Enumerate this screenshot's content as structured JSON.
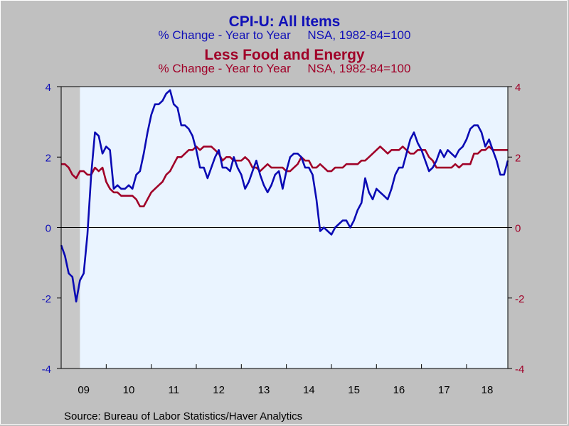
{
  "chart_data": {
    "type": "line",
    "title": "CPI-U: All Items",
    "subtitle": "% Change - Year to Year     NSA, 1982-84=100",
    "title2": "Less Food and Energy",
    "subtitle2": "% Change - Year to Year     NSA, 1982-84=100",
    "source": "Source:  Bureau of Labor Statistics/Haver Analytics",
    "ylim": [
      -4,
      4
    ],
    "yticks": [
      "4",
      "2",
      "0",
      "-2",
      "-4"
    ],
    "yticks_right": [
      "4",
      "2",
      "0",
      "-2",
      "-4"
    ],
    "xticks": [
      "09",
      "10",
      "11",
      "12",
      "13",
      "14",
      "15",
      "16",
      "17",
      "18"
    ],
    "x_range": [
      2009.0,
      2018.917
    ],
    "recession_shade": [
      2009.0,
      2009.417
    ],
    "zero_line": true,
    "grid": false,
    "legend": "none",
    "series": [
      {
        "axis": "left",
        "color": "#0a0ab4",
        "x": [
          2009.0,
          2009.083,
          2009.167,
          2009.25,
          2009.333,
          2009.417,
          2009.5,
          2009.583,
          2009.667,
          2009.75,
          2009.833,
          2009.917,
          2010.0,
          2010.083,
          2010.167,
          2010.25,
          2010.333,
          2010.417,
          2010.5,
          2010.583,
          2010.667,
          2010.75,
          2010.833,
          2010.917,
          2011.0,
          2011.083,
          2011.167,
          2011.25,
          2011.333,
          2011.417,
          2011.5,
          2011.583,
          2011.667,
          2011.75,
          2011.833,
          2011.917,
          2012.0,
          2012.083,
          2012.167,
          2012.25,
          2012.333,
          2012.417,
          2012.5,
          2012.583,
          2012.667,
          2012.75,
          2012.833,
          2012.917,
          2013.0,
          2013.083,
          2013.167,
          2013.25,
          2013.333,
          2013.417,
          2013.5,
          2013.583,
          2013.667,
          2013.75,
          2013.833,
          2013.917,
          2014.0,
          2014.083,
          2014.167,
          2014.25,
          2014.333,
          2014.417,
          2014.5,
          2014.583,
          2014.667,
          2014.75,
          2014.833,
          2014.917,
          2015.0,
          2015.083,
          2015.167,
          2015.25,
          2015.333,
          2015.417,
          2015.5,
          2015.583,
          2015.667,
          2015.75,
          2015.833,
          2015.917,
          2016.0,
          2016.083,
          2016.167,
          2016.25,
          2016.333,
          2016.417,
          2016.5,
          2016.583,
          2016.667,
          2016.75,
          2016.833,
          2016.917,
          2017.0,
          2017.083,
          2017.167,
          2017.25,
          2017.333,
          2017.417,
          2017.5,
          2017.583,
          2017.667,
          2017.75,
          2017.833,
          2017.917,
          2018.0,
          2018.083,
          2018.167,
          2018.25,
          2018.333,
          2018.417,
          2018.5,
          2018.583,
          2018.667,
          2018.75,
          2018.833,
          2018.917
        ],
        "y": [
          -0.5,
          -0.8,
          -1.3,
          -1.4,
          -2.1,
          -1.5,
          -1.3,
          -0.2,
          1.5,
          2.7,
          2.6,
          2.1,
          2.3,
          2.2,
          1.1,
          1.2,
          1.1,
          1.1,
          1.2,
          1.1,
          1.5,
          1.6,
          2.1,
          2.7,
          3.2,
          3.5,
          3.5,
          3.6,
          3.8,
          3.9,
          3.5,
          3.4,
          2.9,
          2.9,
          2.8,
          2.6,
          2.2,
          1.7,
          1.7,
          1.4,
          1.7,
          2.0,
          2.2,
          1.7,
          1.7,
          1.6,
          2.0,
          1.7,
          1.5,
          1.1,
          1.3,
          1.6,
          1.9,
          1.5,
          1.2,
          1.0,
          1.2,
          1.5,
          1.6,
          1.1,
          1.6,
          2.0,
          2.1,
          2.1,
          2.0,
          1.7,
          1.7,
          1.5,
          0.8,
          -0.1,
          0.0,
          -0.1,
          -0.2,
          0.0,
          0.1,
          0.2,
          0.2,
          0.0,
          0.2,
          0.5,
          0.7,
          1.4,
          1.0,
          0.8,
          1.1,
          1.0,
          0.9,
          0.8,
          1.1,
          1.5,
          1.7,
          1.7,
          2.1,
          2.5,
          2.7,
          2.4,
          2.2,
          1.9,
          1.6,
          1.7,
          1.9,
          2.2,
          2.0,
          2.2,
          2.1,
          2.0,
          2.2,
          2.3,
          2.5,
          2.8,
          2.9,
          2.9,
          2.7,
          2.3,
          2.5,
          2.2,
          1.9,
          1.5,
          1.5,
          1.9
        ]
      },
      {
        "axis": "left",
        "color": "#a00028",
        "x": [
          2009.0,
          2009.083,
          2009.167,
          2009.25,
          2009.333,
          2009.417,
          2009.5,
          2009.583,
          2009.667,
          2009.75,
          2009.833,
          2009.917,
          2010.0,
          2010.083,
          2010.167,
          2010.25,
          2010.333,
          2010.417,
          2010.5,
          2010.583,
          2010.667,
          2010.75,
          2010.833,
          2010.917,
          2011.0,
          2011.083,
          2011.167,
          2011.25,
          2011.333,
          2011.417,
          2011.5,
          2011.583,
          2011.667,
          2011.75,
          2011.833,
          2011.917,
          2012.0,
          2012.083,
          2012.167,
          2012.25,
          2012.333,
          2012.417,
          2012.5,
          2012.583,
          2012.667,
          2012.75,
          2012.833,
          2012.917,
          2013.0,
          2013.083,
          2013.167,
          2013.25,
          2013.333,
          2013.417,
          2013.5,
          2013.583,
          2013.667,
          2013.75,
          2013.833,
          2013.917,
          2014.0,
          2014.083,
          2014.167,
          2014.25,
          2014.333,
          2014.417,
          2014.5,
          2014.583,
          2014.667,
          2014.75,
          2014.833,
          2014.917,
          2015.0,
          2015.083,
          2015.167,
          2015.25,
          2015.333,
          2015.417,
          2015.5,
          2015.583,
          2015.667,
          2015.75,
          2015.833,
          2015.917,
          2016.0,
          2016.083,
          2016.167,
          2016.25,
          2016.333,
          2016.417,
          2016.5,
          2016.583,
          2016.667,
          2016.75,
          2016.833,
          2016.917,
          2017.0,
          2017.083,
          2017.167,
          2017.25,
          2017.333,
          2017.417,
          2017.5,
          2017.583,
          2017.667,
          2017.75,
          2017.833,
          2017.917,
          2018.0,
          2018.083,
          2018.167,
          2018.25,
          2018.333,
          2018.417,
          2018.5,
          2018.583,
          2018.667,
          2018.75,
          2018.833,
          2018.917
        ],
        "y": [
          1.8,
          1.8,
          1.7,
          1.5,
          1.4,
          1.6,
          1.6,
          1.5,
          1.5,
          1.7,
          1.6,
          1.7,
          1.3,
          1.1,
          1.0,
          1.0,
          0.9,
          0.9,
          0.9,
          0.9,
          0.8,
          0.6,
          0.6,
          0.8,
          1.0,
          1.1,
          1.2,
          1.3,
          1.5,
          1.6,
          1.8,
          2.0,
          2.0,
          2.1,
          2.2,
          2.2,
          2.3,
          2.2,
          2.3,
          2.3,
          2.3,
          2.2,
          2.1,
          1.9,
          2.0,
          2.0,
          1.9,
          1.9,
          1.9,
          2.0,
          1.9,
          1.7,
          1.7,
          1.6,
          1.7,
          1.8,
          1.7,
          1.7,
          1.7,
          1.7,
          1.6,
          1.6,
          1.7,
          1.8,
          2.0,
          1.9,
          1.9,
          1.7,
          1.7,
          1.8,
          1.7,
          1.6,
          1.6,
          1.7,
          1.7,
          1.7,
          1.8,
          1.8,
          1.8,
          1.8,
          1.9,
          1.9,
          2.0,
          2.1,
          2.2,
          2.3,
          2.2,
          2.1,
          2.2,
          2.2,
          2.2,
          2.3,
          2.2,
          2.1,
          2.1,
          2.2,
          2.2,
          2.2,
          2.0,
          1.9,
          1.7,
          1.7,
          1.7,
          1.7,
          1.7,
          1.8,
          1.7,
          1.8,
          1.8,
          1.8,
          2.1,
          2.1,
          2.2,
          2.2,
          2.3,
          2.2,
          2.2,
          2.2,
          2.2,
          2.2
        ]
      }
    ]
  }
}
